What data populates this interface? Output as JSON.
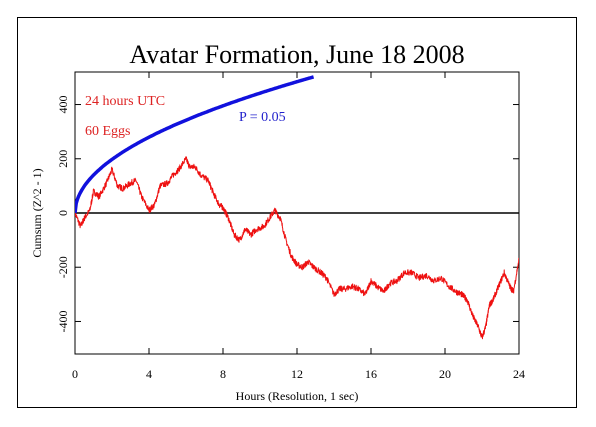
{
  "chart_data": {
    "type": "line",
    "title": "Avatar Formation, June 18 2008",
    "xlabel": "Hours (Resolution, 1 sec)",
    "ylabel": "Cumsum (Z^2 - 1)",
    "xlim": [
      0,
      24
    ],
    "ylim": [
      -520,
      520
    ],
    "xticks": [
      0,
      4,
      8,
      12,
      16,
      20,
      24
    ],
    "yticks": [
      -400,
      -200,
      0,
      200,
      400
    ],
    "grid": false,
    "annotations": [
      {
        "text": "24 hours UTC",
        "color": "#dd2222"
      },
      {
        "text": "60 Eggs",
        "color": "#dd2222"
      },
      {
        "text": "P = 0.05",
        "color": "#2222cc"
      }
    ],
    "series": [
      {
        "role": "cumsum",
        "color": "#ee1111",
        "x": [
          0,
          0.3,
          0.5,
          0.8,
          1.0,
          1.3,
          1.7,
          2.0,
          2.3,
          2.6,
          3.0,
          3.3,
          3.6,
          4.0,
          4.3,
          4.6,
          5.0,
          5.3,
          5.6,
          6.0,
          6.2,
          6.5,
          6.8,
          7.2,
          7.5,
          7.8,
          8.0,
          8.3,
          8.6,
          8.9,
          9.2,
          9.5,
          9.8,
          10.2,
          10.5,
          10.8,
          11.1,
          11.4,
          11.7,
          12.0,
          12.3,
          12.6,
          12.9,
          13.3,
          13.6,
          14.0,
          14.3,
          14.6,
          15.0,
          15.3,
          15.7,
          16.0,
          16.3,
          16.7,
          17.0,
          17.4,
          17.8,
          18.2,
          18.6,
          19.0,
          19.4,
          19.8,
          20.2,
          20.6,
          20.9,
          21.2,
          21.5,
          21.8,
          22.0,
          22.2,
          22.4,
          22.6,
          22.9,
          23.2,
          23.5,
          23.7,
          24.0
        ],
        "y": [
          0,
          -50,
          -20,
          10,
          80,
          60,
          110,
          160,
          100,
          90,
          110,
          120,
          60,
          10,
          30,
          100,
          110,
          140,
          160,
          200,
          170,
          170,
          140,
          120,
          70,
          30,
          20,
          -20,
          -80,
          -100,
          -60,
          -80,
          -60,
          -50,
          -20,
          10,
          -20,
          -100,
          -160,
          -190,
          -200,
          -180,
          -200,
          -220,
          -240,
          -300,
          -280,
          -280,
          -270,
          -280,
          -300,
          -250,
          -270,
          -290,
          -260,
          -250,
          -220,
          -220,
          -240,
          -230,
          -250,
          -240,
          -270,
          -290,
          -300,
          -320,
          -380,
          -420,
          -460,
          -420,
          -340,
          -320,
          -270,
          -220,
          -270,
          -290,
          -170
        ]
      },
      {
        "role": "P = 0.05 envelope",
        "color": "#1111dd",
        "x": [
          0,
          0.5,
          1,
          2,
          3,
          4,
          5,
          6,
          7,
          8,
          9,
          10,
          11,
          12,
          12.9
        ],
        "y": [
          0,
          99,
          140,
          198,
          242,
          280,
          313,
          343,
          370,
          396,
          420,
          442,
          464,
          485,
          502
        ]
      }
    ]
  }
}
